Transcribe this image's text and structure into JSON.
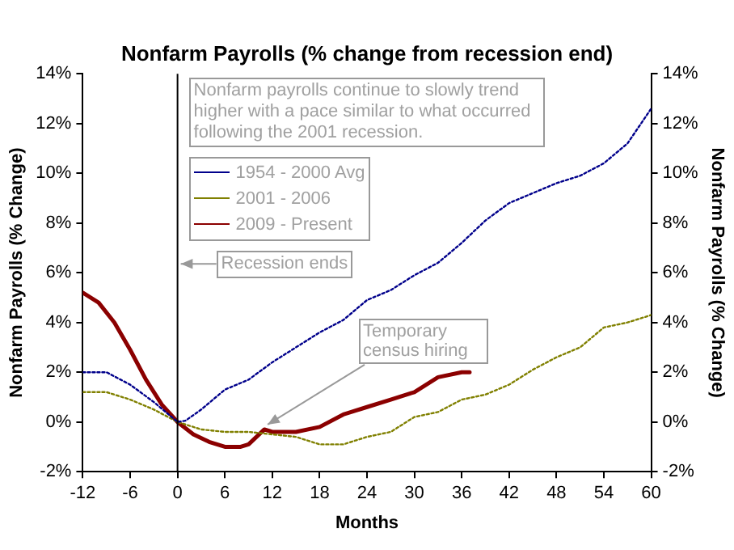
{
  "chart_data": {
    "type": "line",
    "title": "Nonfarm Payrolls (% change from recession end)",
    "xlabel": "Months",
    "ylabel": "Nonfarm Payrolls (% Change)",
    "y2label": "Nonfarm Payrolls (% Change)",
    "xlim": [
      -12,
      60
    ],
    "xticks": [
      -12,
      -6,
      0,
      6,
      12,
      18,
      24,
      30,
      36,
      42,
      48,
      54,
      60
    ],
    "ylim": [
      -2,
      14
    ],
    "yticks": [
      {
        "value": -2,
        "label": "-2%"
      },
      {
        "value": 0,
        "label": "0%"
      },
      {
        "value": 2,
        "label": "2%"
      },
      {
        "value": 4,
        "label": "4%"
      },
      {
        "value": 6,
        "label": "6%"
      },
      {
        "value": 8,
        "label": "8%"
      },
      {
        "value": 10,
        "label": "10%"
      },
      {
        "value": 12,
        "label": "12%"
      },
      {
        "value": 14,
        "label": "14%"
      }
    ],
    "y2lim": [
      -2,
      14
    ],
    "y2ticks": [
      {
        "value": -2,
        "label": "-2%"
      },
      {
        "value": 0,
        "label": "0%"
      },
      {
        "value": 2,
        "label": "2%"
      },
      {
        "value": 4,
        "label": "4%"
      },
      {
        "value": 6,
        "label": "6%"
      },
      {
        "value": 8,
        "label": "8%"
      },
      {
        "value": 10,
        "label": "10%"
      },
      {
        "value": 12,
        "label": "12%"
      },
      {
        "value": 14,
        "label": "14%"
      }
    ],
    "grid": false,
    "legend": "top left",
    "marker": "none",
    "series": [
      {
        "name": "1954 - 2000 Avg",
        "color": "#00008b",
        "line_style": "dotted",
        "x": [
          -12,
          -9,
          -6,
          -3,
          0,
          1,
          3,
          6,
          9,
          12,
          15,
          18,
          21,
          24,
          27,
          30,
          33,
          36,
          39,
          42,
          45,
          48,
          51,
          54,
          57,
          60
        ],
        "values": [
          2.0,
          2.0,
          1.5,
          0.8,
          0,
          0.05,
          0.5,
          1.3,
          1.7,
          2.4,
          3.0,
          3.6,
          4.1,
          4.9,
          5.3,
          5.9,
          6.4,
          7.2,
          8.1,
          8.8,
          9.2,
          9.6,
          9.9,
          10.4,
          11.2,
          12.6
        ]
      },
      {
        "name": "2001 - 2006",
        "color": "#808000",
        "line_style": "dotted",
        "x": [
          -12,
          -9,
          -6,
          -3,
          0,
          3,
          6,
          9,
          12,
          15,
          18,
          21,
          24,
          27,
          30,
          33,
          36,
          39,
          42,
          45,
          48,
          51,
          54,
          57,
          60
        ],
        "values": [
          1.2,
          1.2,
          0.9,
          0.5,
          0,
          -0.3,
          -0.4,
          -0.4,
          -0.5,
          -0.6,
          -0.9,
          -0.9,
          -0.6,
          -0.4,
          0.2,
          0.4,
          0.9,
          1.1,
          1.5,
          2.1,
          2.6,
          3.0,
          3.8,
          4.0,
          4.3
        ]
      },
      {
        "name": "2009 - Present",
        "color": "#8b0000",
        "line_style": "solid",
        "x": [
          -12,
          -10,
          -8,
          -6,
          -4,
          -2,
          0,
          2,
          4,
          6,
          8,
          9,
          10,
          11,
          12,
          15,
          18,
          21,
          24,
          27,
          30,
          33,
          36,
          37
        ],
        "values": [
          5.2,
          4.8,
          4.0,
          2.9,
          1.7,
          0.7,
          0,
          -0.5,
          -0.8,
          -1.0,
          -1.0,
          -0.9,
          -0.6,
          -0.3,
          -0.4,
          -0.4,
          -0.2,
          0.3,
          0.6,
          0.9,
          1.2,
          1.8,
          2.0,
          2.0
        ]
      }
    ],
    "ref_lines": [
      {
        "axis": "x",
        "value": 0,
        "label": "Recession ends",
        "color": "#000000"
      }
    ],
    "annotations": [
      "Nonfarm payrolls continue to slowly trend higher with a pace similar to what occurred following the 2001 recession.",
      {
        "text": "Temporary census hiring",
        "x": 11,
        "y": -0.3
      }
    ]
  }
}
